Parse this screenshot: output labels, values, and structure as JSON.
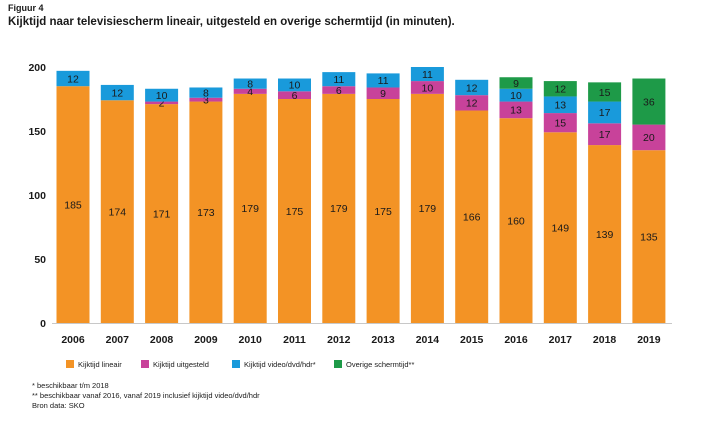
{
  "figure_label": "Figuur 4",
  "title": "Kijktijd naar televisiescherm lineair, uitgesteld en overige schermtijd (in minuten).",
  "chart_data": {
    "type": "bar",
    "stacked": true,
    "categories": [
      "2006",
      "2007",
      "2008",
      "2009",
      "2010",
      "2011",
      "2012",
      "2013",
      "2014",
      "2015",
      "2016",
      "2017",
      "2018",
      "2019"
    ],
    "ylim": [
      0,
      200
    ],
    "yticks": [
      0,
      50,
      100,
      150,
      200
    ],
    "grid": false,
    "legend_position": "bottom",
    "series": [
      {
        "name": "Kijktijd lineair",
        "color": "#F39325",
        "values": [
          185,
          174,
          171,
          173,
          179,
          175,
          179,
          175,
          179,
          166,
          160,
          149,
          139,
          135
        ],
        "labels": [
          "185",
          "174",
          "171",
          "173",
          "179",
          "175",
          "179",
          "175",
          "179",
          "166",
          "160",
          "149",
          "139",
          "135"
        ]
      },
      {
        "name": "Kijktijd uitgesteld",
        "color": "#C8429A",
        "values": [
          0,
          0,
          2,
          3,
          4,
          6,
          6,
          9,
          10,
          12,
          13,
          15,
          17,
          20
        ],
        "labels": [
          "",
          "",
          "2",
          "3",
          "4",
          "6",
          "6",
          "9",
          "10",
          "12",
          "13",
          "15",
          "17",
          "20"
        ]
      },
      {
        "name": "Kijktijd video/dvd/hdr*",
        "color": "#199ADB",
        "values": [
          12,
          12,
          10,
          8,
          8,
          10,
          11,
          11,
          11,
          12,
          10,
          13,
          17,
          0
        ],
        "labels": [
          "12",
          "12",
          "10",
          "8",
          "8",
          "10",
          "11",
          "11",
          "11",
          "12",
          "10",
          "13",
          "17",
          ""
        ]
      },
      {
        "name": "Overige schermtijd**",
        "color": "#1E9A48",
        "values": [
          0,
          0,
          0,
          0,
          0,
          0,
          0,
          0,
          0,
          0,
          9,
          12,
          15,
          36
        ],
        "labels": [
          "",
          "",
          "",
          "",
          "",
          "",
          "",
          "",
          "",
          "",
          "9",
          "12",
          "15",
          "36"
        ]
      }
    ]
  },
  "notes": [
    "* beschikbaar t/m 2018",
    "** beschikbaar vanaf 2016, vanaf 2019 inclusief kijktijd video/dvd/hdr",
    "Bron data: SKO"
  ]
}
